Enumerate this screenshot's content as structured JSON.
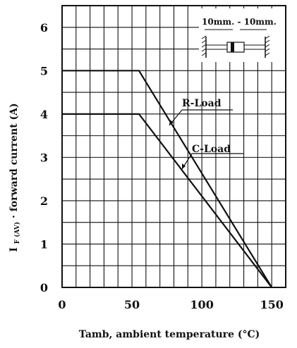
{
  "chart_data": {
    "type": "line",
    "xlabel": "Tamb, ambient temperature (°C)",
    "ylabel_main": "I",
    "ylabel_sub": "F (AV)",
    "ylabel_rest": "· forward current (A)",
    "xlim": [
      0,
      160
    ],
    "ylim": [
      0,
      6.5
    ],
    "x_ticks": [
      "0",
      "50",
      "100",
      "150"
    ],
    "x_tick_values": [
      0,
      50,
      100,
      150
    ],
    "y_ticks": [
      "0",
      "1",
      "2",
      "3",
      "4",
      "5",
      "6"
    ],
    "y_tick_values": [
      0,
      1,
      2,
      3,
      4,
      5,
      6
    ],
    "grid": true,
    "series": [
      {
        "name": "R-Load",
        "x": [
          0,
          55,
          150
        ],
        "y": [
          5,
          5,
          0
        ]
      },
      {
        "name": "C-Load",
        "x": [
          0,
          55,
          150
        ],
        "y": [
          4,
          4,
          0
        ]
      }
    ],
    "annotations": {
      "r_load": "R-Load",
      "c_load": "C-Load",
      "inset_label": "10mm. - 10mm."
    }
  }
}
